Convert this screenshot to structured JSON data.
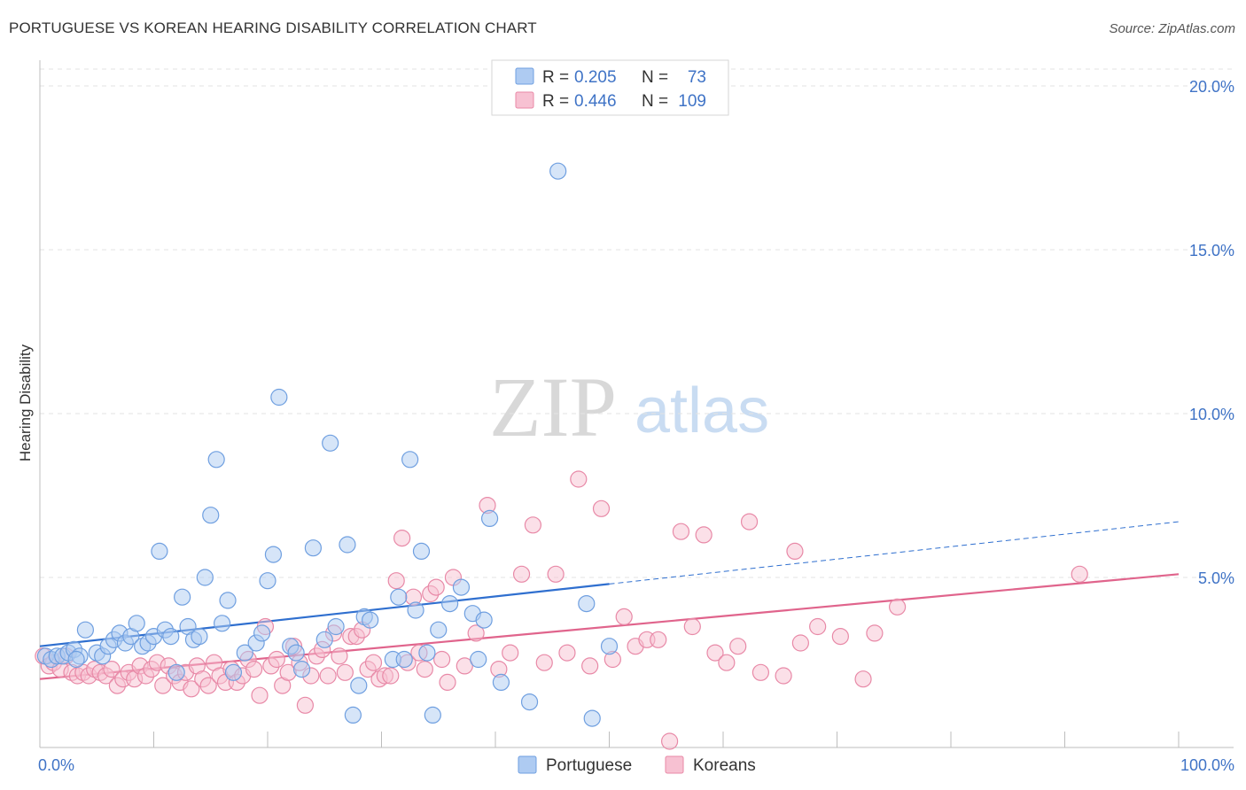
{
  "title": "PORTUGUESE VS KOREAN HEARING DISABILITY CORRELATION CHART",
  "source": "Source: ZipAtlas.com",
  "watermark": {
    "zip": "ZIP",
    "atlas": "atlas"
  },
  "colors": {
    "portuguese_fill": "#aecbf2",
    "portuguese_stroke": "#6f9fe0",
    "portuguese_line": "#2f6fcf",
    "koreans_fill": "#f7c1d2",
    "koreans_stroke": "#e889a7",
    "koreans_line": "#e0648c",
    "axis_text": "#3f73c6",
    "grid": "#e3e3e3"
  },
  "legend": {
    "rows": [
      {
        "r_label": "R =",
        "r_value": "0.205",
        "n_label": "N =",
        "n_value": "73"
      },
      {
        "r_label": "R =",
        "r_value": "0.446",
        "n_label": "N =",
        "n_value": "109"
      }
    ]
  },
  "chart_data": {
    "type": "scatter",
    "title": "PORTUGUESE VS KOREAN HEARING DISABILITY CORRELATION CHART",
    "xlabel": "",
    "ylabel": "Hearing Disability",
    "xlim": [
      0,
      100
    ],
    "ylim": [
      0,
      20
    ],
    "x_tick_labels": [
      "0.0%",
      "100.0%"
    ],
    "y_ticks": [
      5,
      10,
      15,
      20
    ],
    "y_tick_labels": [
      "5.0%",
      "10.0%",
      "15.0%",
      "20.0%"
    ],
    "grid": "horizontal dashed",
    "legend_position": "top-center",
    "series": [
      {
        "name": "Portuguese",
        "r": 0.205,
        "n": 73,
        "trend": {
          "x0": 0,
          "y0": 2.9,
          "x1": 50,
          "y1": 4.8,
          "dashed_to_x": 100,
          "dashed_to_y": 6.7
        },
        "points": [
          [
            0.5,
            2.6
          ],
          [
            1,
            2.5
          ],
          [
            1.5,
            2.6
          ],
          [
            2,
            2.6
          ],
          [
            2.5,
            2.7
          ],
          [
            3,
            2.8
          ],
          [
            3.5,
            2.6
          ],
          [
            4,
            3.4
          ],
          [
            5,
            2.7
          ],
          [
            5.5,
            2.6
          ],
          [
            6,
            2.9
          ],
          [
            6.5,
            3.1
          ],
          [
            7,
            3.3
          ],
          [
            7.5,
            3.0
          ],
          [
            8,
            3.2
          ],
          [
            8.5,
            3.6
          ],
          [
            9,
            2.9
          ],
          [
            9.5,
            3.0
          ],
          [
            10,
            3.2
          ],
          [
            10.5,
            5.8
          ],
          [
            11,
            3.4
          ],
          [
            11.5,
            3.2
          ],
          [
            12,
            2.1
          ],
          [
            12.5,
            4.4
          ],
          [
            13,
            3.5
          ],
          [
            13.5,
            3.1
          ],
          [
            14,
            3.2
          ],
          [
            14.5,
            5.0
          ],
          [
            15,
            6.9
          ],
          [
            15.5,
            8.6
          ],
          [
            16,
            3.6
          ],
          [
            16.5,
            4.3
          ],
          [
            17,
            2.1
          ],
          [
            18,
            2.7
          ],
          [
            19,
            3.0
          ],
          [
            19.5,
            3.3
          ],
          [
            20,
            4.9
          ],
          [
            20.5,
            5.7
          ],
          [
            21,
            10.5
          ],
          [
            22,
            2.9
          ],
          [
            22.5,
            2.7
          ],
          [
            23,
            2.2
          ],
          [
            24,
            5.9
          ],
          [
            25,
            3.1
          ],
          [
            25.5,
            9.1
          ],
          [
            26,
            3.5
          ],
          [
            27,
            6.0
          ],
          [
            27.5,
            0.8
          ],
          [
            28,
            1.7
          ],
          [
            28.5,
            3.8
          ],
          [
            29,
            3.7
          ],
          [
            31,
            2.5
          ],
          [
            31.5,
            4.4
          ],
          [
            32,
            2.5
          ],
          [
            32.5,
            8.6
          ],
          [
            33,
            4.0
          ],
          [
            33.5,
            5.8
          ],
          [
            34,
            2.7
          ],
          [
            34.5,
            0.8
          ],
          [
            35,
            3.4
          ],
          [
            36,
            4.2
          ],
          [
            37,
            4.7
          ],
          [
            38,
            3.9
          ],
          [
            38.5,
            2.5
          ],
          [
            39,
            3.7
          ],
          [
            39.5,
            6.8
          ],
          [
            40.5,
            1.8
          ],
          [
            43,
            1.2
          ],
          [
            45.5,
            17.4
          ],
          [
            48,
            4.2
          ],
          [
            48.5,
            0.7
          ],
          [
            50,
            2.9
          ],
          [
            3.2,
            2.5
          ]
        ]
      },
      {
        "name": "Koreans",
        "r": 0.446,
        "n": 109,
        "trend": {
          "x0": 0,
          "y0": 1.9,
          "x1": 100,
          "y1": 5.1
        },
        "points": [
          [
            0.3,
            2.6
          ],
          [
            0.8,
            2.3
          ],
          [
            1.2,
            2.4
          ],
          [
            1.8,
            2.2
          ],
          [
            2.3,
            2.6
          ],
          [
            2.8,
            2.1
          ],
          [
            3.3,
            2.0
          ],
          [
            3.8,
            2.1
          ],
          [
            4.3,
            2.0
          ],
          [
            4.8,
            2.2
          ],
          [
            5.3,
            2.1
          ],
          [
            5.8,
            2.0
          ],
          [
            6.3,
            2.2
          ],
          [
            6.8,
            1.7
          ],
          [
            7.3,
            1.9
          ],
          [
            7.8,
            2.1
          ],
          [
            8.3,
            1.9
          ],
          [
            8.8,
            2.3
          ],
          [
            9.3,
            2.0
          ],
          [
            9.8,
            2.2
          ],
          [
            10.3,
            2.4
          ],
          [
            10.8,
            1.7
          ],
          [
            11.3,
            2.3
          ],
          [
            11.8,
            2.0
          ],
          [
            12.3,
            1.8
          ],
          [
            12.8,
            2.1
          ],
          [
            13.3,
            1.6
          ],
          [
            13.8,
            2.3
          ],
          [
            14.3,
            1.9
          ],
          [
            14.8,
            1.7
          ],
          [
            15.3,
            2.4
          ],
          [
            15.8,
            2.0
          ],
          [
            16.3,
            1.8
          ],
          [
            16.8,
            2.2
          ],
          [
            17.3,
            1.8
          ],
          [
            17.8,
            2.0
          ],
          [
            18.3,
            2.5
          ],
          [
            18.8,
            2.2
          ],
          [
            19.3,
            1.4
          ],
          [
            19.8,
            3.5
          ],
          [
            20.3,
            2.3
          ],
          [
            20.8,
            2.5
          ],
          [
            21.3,
            1.7
          ],
          [
            21.8,
            2.1
          ],
          [
            22.3,
            2.9
          ],
          [
            22.8,
            2.4
          ],
          [
            23.3,
            1.1
          ],
          [
            23.8,
            2.0
          ],
          [
            24.3,
            2.6
          ],
          [
            24.8,
            2.8
          ],
          [
            25.3,
            2.0
          ],
          [
            25.8,
            3.3
          ],
          [
            26.3,
            2.6
          ],
          [
            26.8,
            2.1
          ],
          [
            27.3,
            3.2
          ],
          [
            27.8,
            3.2
          ],
          [
            28.3,
            3.4
          ],
          [
            28.8,
            2.2
          ],
          [
            29.3,
            2.4
          ],
          [
            29.8,
            1.9
          ],
          [
            30.3,
            2.0
          ],
          [
            30.8,
            2.0
          ],
          [
            31.3,
            4.9
          ],
          [
            31.8,
            6.2
          ],
          [
            32.3,
            2.4
          ],
          [
            32.8,
            4.4
          ],
          [
            33.3,
            2.7
          ],
          [
            33.8,
            2.2
          ],
          [
            34.3,
            4.5
          ],
          [
            34.8,
            4.7
          ],
          [
            35.3,
            2.5
          ],
          [
            35.8,
            1.8
          ],
          [
            36.3,
            5.0
          ],
          [
            37.3,
            2.3
          ],
          [
            38.3,
            3.3
          ],
          [
            39.3,
            7.2
          ],
          [
            40.3,
            2.2
          ],
          [
            41.3,
            2.7
          ],
          [
            42.3,
            5.1
          ],
          [
            43.3,
            6.6
          ],
          [
            44.3,
            2.4
          ],
          [
            45.3,
            5.1
          ],
          [
            46.3,
            2.7
          ],
          [
            47.3,
            8.0
          ],
          [
            48.3,
            2.3
          ],
          [
            49.3,
            7.1
          ],
          [
            50.3,
            2.5
          ],
          [
            51.3,
            3.8
          ],
          [
            52.3,
            2.9
          ],
          [
            53.3,
            3.1
          ],
          [
            54.3,
            3.1
          ],
          [
            55.3,
            0.0
          ],
          [
            56.3,
            6.4
          ],
          [
            57.3,
            3.5
          ],
          [
            58.3,
            6.3
          ],
          [
            59.3,
            2.7
          ],
          [
            60.3,
            2.4
          ],
          [
            61.3,
            2.9
          ],
          [
            62.3,
            6.7
          ],
          [
            63.3,
            2.1
          ],
          [
            65.3,
            2.0
          ],
          [
            66.3,
            5.8
          ],
          [
            66.8,
            3.0
          ],
          [
            68.3,
            3.5
          ],
          [
            70.3,
            3.2
          ],
          [
            72.3,
            1.9
          ],
          [
            73.3,
            3.3
          ],
          [
            75.3,
            4.1
          ],
          [
            91.3,
            5.1
          ]
        ]
      }
    ]
  }
}
